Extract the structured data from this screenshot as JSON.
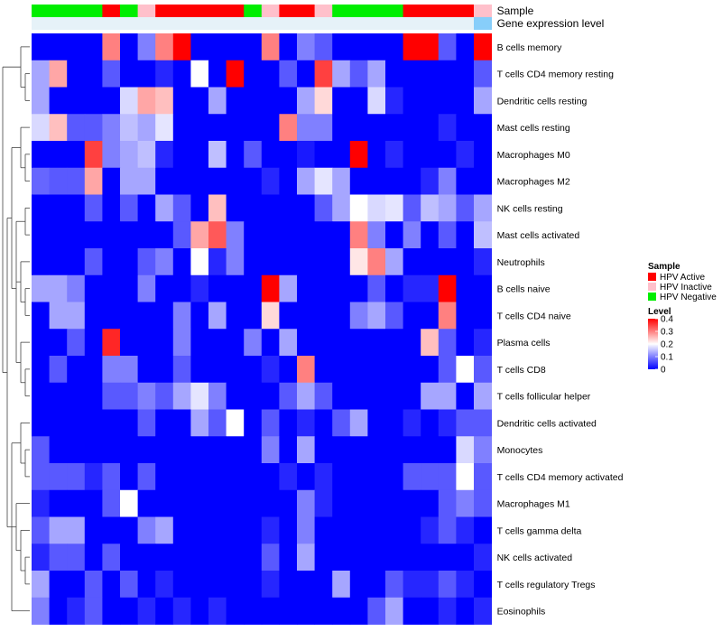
{
  "chart_data": {
    "type": "heatmap",
    "title": "",
    "annotations": [
      {
        "name": "Sample",
        "values": [
          "HPV Negative",
          "HPV Negative",
          "HPV Negative",
          "HPV Negative",
          "HPV Active",
          "HPV Negative",
          "HPV Inactive",
          "HPV Active",
          "HPV Active",
          "HPV Active",
          "HPV Active",
          "HPV Active",
          "HPV Negative",
          "HPV Inactive",
          "HPV Active",
          "HPV Active",
          "HPV Inactive",
          "HPV Negative",
          "HPV Negative",
          "HPV Negative",
          "HPV Negative",
          "HPV Active",
          "HPV Active",
          "HPV Active",
          "HPV Active",
          "HPV Inactive"
        ]
      },
      {
        "name": "Gene expression level",
        "values": [
          "low",
          "low",
          "low",
          "low",
          "low",
          "low",
          "low",
          "low",
          "low",
          "low",
          "low",
          "low",
          "low",
          "low",
          "low",
          "low",
          "low",
          "low",
          "low",
          "low",
          "low",
          "low",
          "low",
          "low",
          "low",
          "high"
        ]
      }
    ],
    "gene_level_colors": {
      "low": "#E6F2F8",
      "high": "#87CEFA"
    },
    "rows": [
      "B cells memory",
      "T cells CD4 memory resting",
      "Dendritic cells resting",
      "Mast cells resting",
      "Macrophages M0",
      "Macrophages M2",
      "NK cells resting",
      "Mast cells activated",
      "Neutrophils",
      "B cells naive",
      "T cells CD4 naive",
      "Plasma cells",
      "T cells CD8",
      "T cells follicular helper",
      "Dendritic cells activated",
      "Monocytes",
      "T cells CD4 memory activated",
      "Macrophages M1",
      "T cells gamma delta",
      "NK cells activated",
      "T cells regulatory  Tregs",
      "Eosinophils"
    ],
    "values": [
      [
        0.0,
        0.0,
        0.0,
        0.0,
        0.3,
        0.0,
        0.1,
        0.3,
        0.4,
        0.0,
        0.0,
        0.0,
        0.0,
        0.3,
        0.0,
        0.1,
        0.07,
        0.0,
        0.0,
        0.0,
        0.0,
        0.4,
        0.4,
        0.07,
        0.0,
        0.4
      ],
      [
        0.13,
        0.27,
        0.0,
        0.0,
        0.07,
        0.0,
        0.0,
        0.03,
        0.0,
        0.2,
        0.0,
        0.4,
        0.0,
        0.0,
        0.07,
        0.0,
        0.35,
        0.13,
        0.07,
        0.13,
        0.0,
        0.0,
        0.0,
        0.0,
        0.0,
        0.07
      ],
      [
        0.13,
        0.0,
        0.0,
        0.0,
        0.0,
        0.17,
        0.27,
        0.25,
        0.0,
        0.0,
        0.13,
        0.0,
        0.0,
        0.0,
        0.0,
        0.13,
        0.23,
        0.0,
        0.0,
        0.17,
        0.03,
        0.0,
        0.0,
        0.0,
        0.0,
        0.13
      ],
      [
        0.17,
        0.25,
        0.07,
        0.07,
        0.1,
        0.15,
        0.13,
        0.18,
        0.0,
        0.0,
        0.0,
        0.0,
        0.0,
        0.0,
        0.3,
        0.1,
        0.1,
        0.0,
        0.0,
        0.0,
        0.0,
        0.0,
        0.0,
        0.03,
        0.0,
        0.0
      ],
      [
        0.0,
        0.0,
        0.0,
        0.35,
        0.1,
        0.13,
        0.15,
        0.03,
        0.0,
        0.0,
        0.15,
        0.0,
        0.07,
        0.0,
        0.0,
        0.02,
        0.0,
        0.0,
        0.4,
        0.0,
        0.03,
        0.0,
        0.0,
        0.0,
        0.03,
        0.0
      ],
      [
        0.08,
        0.07,
        0.07,
        0.27,
        0.0,
        0.13,
        0.13,
        0.0,
        0.0,
        0.0,
        0.0,
        0.0,
        0.0,
        0.03,
        0.0,
        0.13,
        0.18,
        0.13,
        0.0,
        0.0,
        0.0,
        0.0,
        0.03,
        0.1,
        0.0,
        0.0
      ],
      [
        0.0,
        0.0,
        0.0,
        0.07,
        0.0,
        0.07,
        0.0,
        0.13,
        0.07,
        0.0,
        0.25,
        0.0,
        0.0,
        0.0,
        0.0,
        0.0,
        0.07,
        0.13,
        0.2,
        0.17,
        0.18,
        0.07,
        0.15,
        0.13,
        0.07,
        0.13
      ],
      [
        0.0,
        0.0,
        0.0,
        0.0,
        0.0,
        0.0,
        0.0,
        0.0,
        0.07,
        0.27,
        0.33,
        0.1,
        0.0,
        0.0,
        0.0,
        0.0,
        0.0,
        0.0,
        0.3,
        0.1,
        0.0,
        0.1,
        0.0,
        0.07,
        0.0,
        0.15
      ],
      [
        0.0,
        0.0,
        0.0,
        0.07,
        0.0,
        0.0,
        0.07,
        0.1,
        0.0,
        0.2,
        0.03,
        0.1,
        0.0,
        0.0,
        0.0,
        0.0,
        0.0,
        0.0,
        0.22,
        0.3,
        0.13,
        0.0,
        0.0,
        0.0,
        0.0,
        0.03
      ],
      [
        0.13,
        0.13,
        0.1,
        0.0,
        0.0,
        0.0,
        0.1,
        0.0,
        0.0,
        0.03,
        0.0,
        0.0,
        0.0,
        0.4,
        0.13,
        0.0,
        0.0,
        0.0,
        0.0,
        0.07,
        0.0,
        0.03,
        0.03,
        0.4,
        0.0,
        0.0
      ],
      [
        0.0,
        0.13,
        0.13,
        0.0,
        0.0,
        0.0,
        0.0,
        0.0,
        0.1,
        0.0,
        0.13,
        0.0,
        0.0,
        0.23,
        0.0,
        0.0,
        0.0,
        0.0,
        0.1,
        0.13,
        0.07,
        0.0,
        0.0,
        0.3,
        0.0,
        0.0
      ],
      [
        0.0,
        0.0,
        0.07,
        0.0,
        0.37,
        0.0,
        0.0,
        0.0,
        0.1,
        0.0,
        0.0,
        0.0,
        0.1,
        0.0,
        0.13,
        0.0,
        0.0,
        0.0,
        0.0,
        0.0,
        0.0,
        0.0,
        0.25,
        0.07,
        0.0,
        0.03
      ],
      [
        0.0,
        0.07,
        0.0,
        0.0,
        0.1,
        0.1,
        0.0,
        0.0,
        0.07,
        0.0,
        0.0,
        0.0,
        0.0,
        0.03,
        0.0,
        0.3,
        0.0,
        0.0,
        0.0,
        0.0,
        0.0,
        0.0,
        0.0,
        0.07,
        0.2,
        0.07
      ],
      [
        0.0,
        0.0,
        0.0,
        0.0,
        0.07,
        0.07,
        0.1,
        0.07,
        0.13,
        0.18,
        0.1,
        0.0,
        0.0,
        0.0,
        0.07,
        0.13,
        0.07,
        0.0,
        0.0,
        0.0,
        0.0,
        0.0,
        0.13,
        0.13,
        0.0,
        0.13
      ],
      [
        0.0,
        0.0,
        0.0,
        0.0,
        0.0,
        0.0,
        0.07,
        0.0,
        0.0,
        0.13,
        0.07,
        0.2,
        0.0,
        0.07,
        0.0,
        0.03,
        0.0,
        0.07,
        0.13,
        0.0,
        0.0,
        0.03,
        0.0,
        0.03,
        0.07,
        0.07
      ],
      [
        0.07,
        0.0,
        0.0,
        0.0,
        0.0,
        0.0,
        0.0,
        0.0,
        0.0,
        0.0,
        0.0,
        0.0,
        0.0,
        0.1,
        0.0,
        0.13,
        0.0,
        0.0,
        0.0,
        0.0,
        0.0,
        0.0,
        0.0,
        0.0,
        0.17,
        0.1
      ],
      [
        0.07,
        0.07,
        0.07,
        0.03,
        0.07,
        0.0,
        0.07,
        0.0,
        0.0,
        0.0,
        0.0,
        0.0,
        0.0,
        0.0,
        0.03,
        0.0,
        0.03,
        0.0,
        0.0,
        0.0,
        0.0,
        0.07,
        0.07,
        0.07,
        0.2,
        0.07
      ],
      [
        0.03,
        0.0,
        0.0,
        0.0,
        0.07,
        0.2,
        0.0,
        0.0,
        0.0,
        0.0,
        0.0,
        0.0,
        0.0,
        0.0,
        0.0,
        0.1,
        0.03,
        0.0,
        0.0,
        0.0,
        0.0,
        0.0,
        0.0,
        0.07,
        0.1,
        0.07
      ],
      [
        0.07,
        0.13,
        0.13,
        0.0,
        0.0,
        0.0,
        0.1,
        0.13,
        0.0,
        0.0,
        0.0,
        0.0,
        0.0,
        0.03,
        0.0,
        0.1,
        0.0,
        0.0,
        0.0,
        0.0,
        0.0,
        0.0,
        0.03,
        0.07,
        0.03,
        0.0
      ],
      [
        0.03,
        0.07,
        0.07,
        0.0,
        0.07,
        0.0,
        0.0,
        0.0,
        0.0,
        0.0,
        0.0,
        0.0,
        0.0,
        0.07,
        0.0,
        0.13,
        0.0,
        0.0,
        0.0,
        0.0,
        0.0,
        0.0,
        0.0,
        0.0,
        0.0,
        0.03
      ],
      [
        0.13,
        0.0,
        0.0,
        0.07,
        0.0,
        0.07,
        0.0,
        0.03,
        0.0,
        0.0,
        0.0,
        0.0,
        0.0,
        0.03,
        0.0,
        0.0,
        0.0,
        0.13,
        0.0,
        0.0,
        0.07,
        0.03,
        0.03,
        0.07,
        0.03,
        0.0
      ],
      [
        0.1,
        0.0,
        0.03,
        0.07,
        0.0,
        0.0,
        0.03,
        0.0,
        0.03,
        0.0,
        0.03,
        0.0,
        0.0,
        0.0,
        0.0,
        0.0,
        0.0,
        0.0,
        0.0,
        0.07,
        0.13,
        0.0,
        0.0,
        0.03,
        0.0,
        0.03
      ]
    ],
    "color_scale": {
      "min": 0,
      "max": 0.4,
      "low_color": "#0000FF",
      "mid_color": "#FFFFFF",
      "high_color": "#FF0000"
    },
    "legend": {
      "sample_title": "Sample",
      "sample_items": [
        {
          "label": "HPV Active",
          "color": "#FF0000"
        },
        {
          "label": "HPV Inactive",
          "color": "#FFC0CB"
        },
        {
          "label": "HPV Negative",
          "color": "#00EE00"
        }
      ],
      "level_title": "Level",
      "level_ticks": [
        {
          "value": 0.4,
          "label": "0.4"
        },
        {
          "value": 0.3,
          "label": "0.3"
        },
        {
          "value": 0.2,
          "label": "0.2"
        },
        {
          "value": 0.1,
          "label": "0.1"
        },
        {
          "value": 0,
          "label": "0"
        }
      ]
    }
  }
}
